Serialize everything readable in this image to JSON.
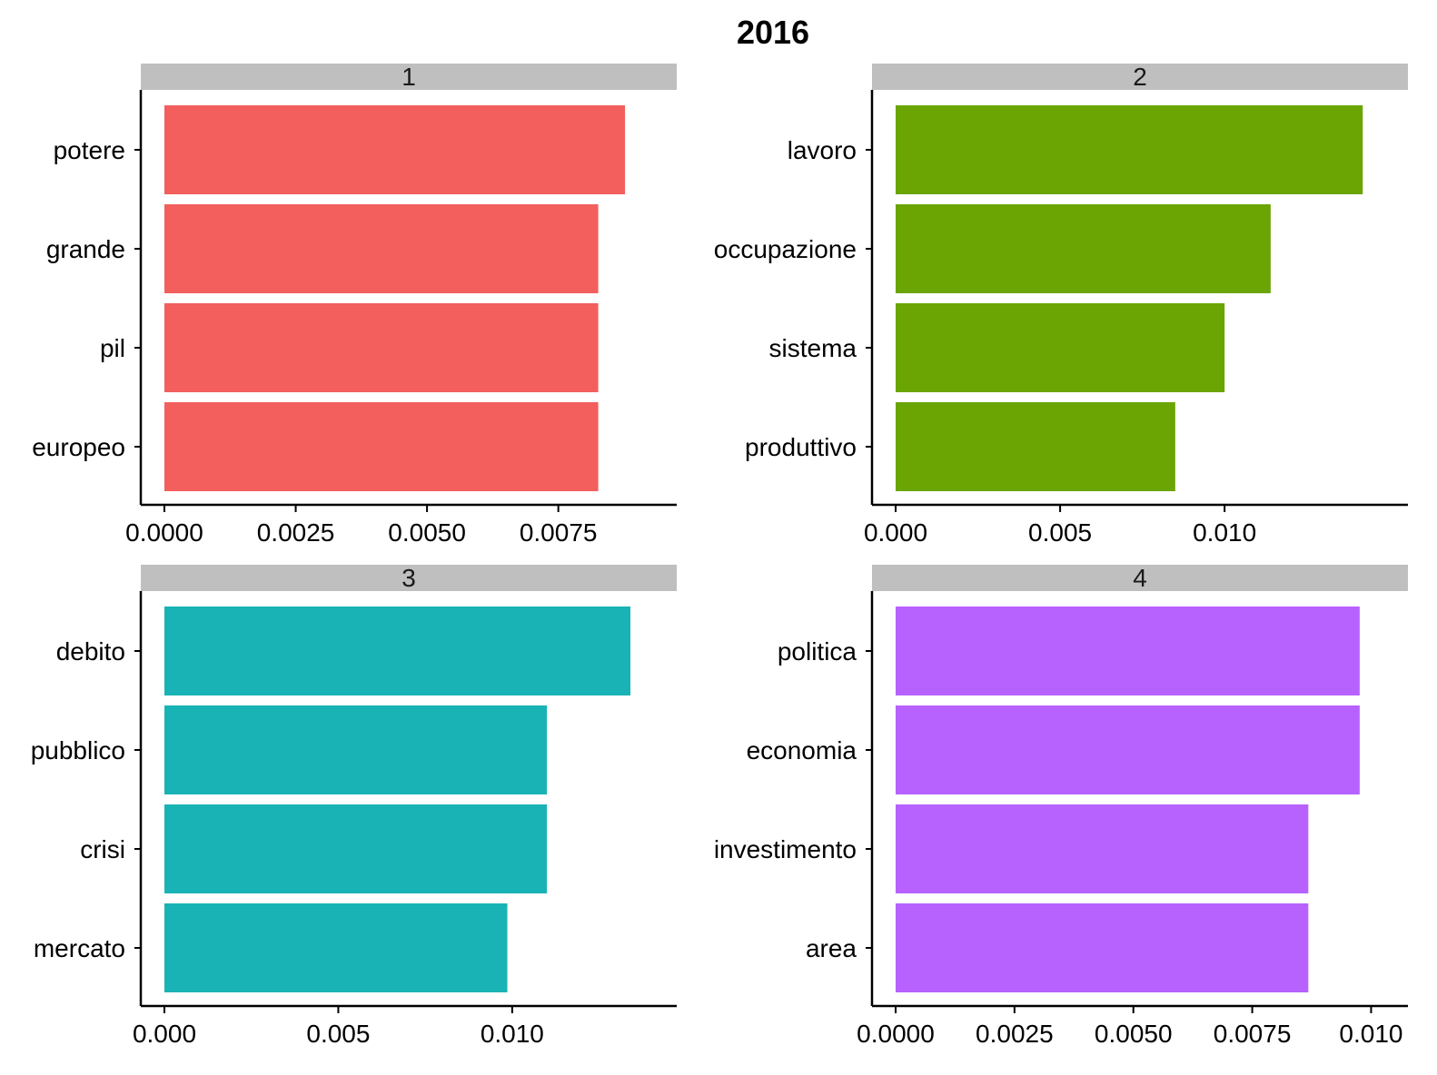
{
  "title": "2016",
  "chart_data": [
    {
      "type": "bar",
      "orientation": "horizontal",
      "facet": "1",
      "color": "#F25F5C",
      "categories": [
        "potere",
        "grande",
        "pil",
        "europeo"
      ],
      "values": [
        0.00877,
        0.00826,
        0.00826,
        0.00826
      ],
      "xlim": [
        0,
        0.00927
      ],
      "xticks": [
        0,
        0.0025,
        0.005,
        0.0075
      ],
      "xtick_labels": [
        "0.0000",
        "0.0025",
        "0.0050",
        "0.0075"
      ]
    },
    {
      "type": "bar",
      "orientation": "horizontal",
      "facet": "2",
      "color": "#6AA504",
      "categories": [
        "lavoro",
        "occupazione",
        "sistema",
        "produttivo"
      ],
      "values": [
        0.0142,
        0.0114,
        0.01,
        0.0085
      ],
      "xlim": [
        0,
        0.0148
      ],
      "xticks": [
        0,
        0.005,
        0.01
      ],
      "xtick_labels": [
        "0.000",
        "0.005",
        "0.010"
      ]
    },
    {
      "type": "bar",
      "orientation": "horizontal",
      "facet": "3",
      "color": "#19B3B6",
      "categories": [
        "debito",
        "pubblico",
        "crisi",
        "mercato"
      ],
      "values": [
        0.0134,
        0.011,
        0.011,
        0.00986
      ],
      "xlim": [
        0,
        0.014
      ],
      "xticks": [
        0,
        0.005,
        0.01
      ],
      "xtick_labels": [
        "0.000",
        "0.005",
        "0.010"
      ]
    },
    {
      "type": "bar",
      "orientation": "horizontal",
      "facet": "4",
      "color": "#B762FE",
      "categories": [
        "politica",
        "economia",
        "investimento",
        "area"
      ],
      "values": [
        0.00976,
        0.00976,
        0.00868,
        0.00868
      ],
      "xlim": [
        0,
        0.01024
      ],
      "xticks": [
        0,
        0.0025,
        0.005,
        0.0075,
        0.01
      ],
      "xtick_labels": [
        "0.0000",
        "0.0025",
        "0.0050",
        "0.0075",
        "0.010"
      ]
    }
  ]
}
